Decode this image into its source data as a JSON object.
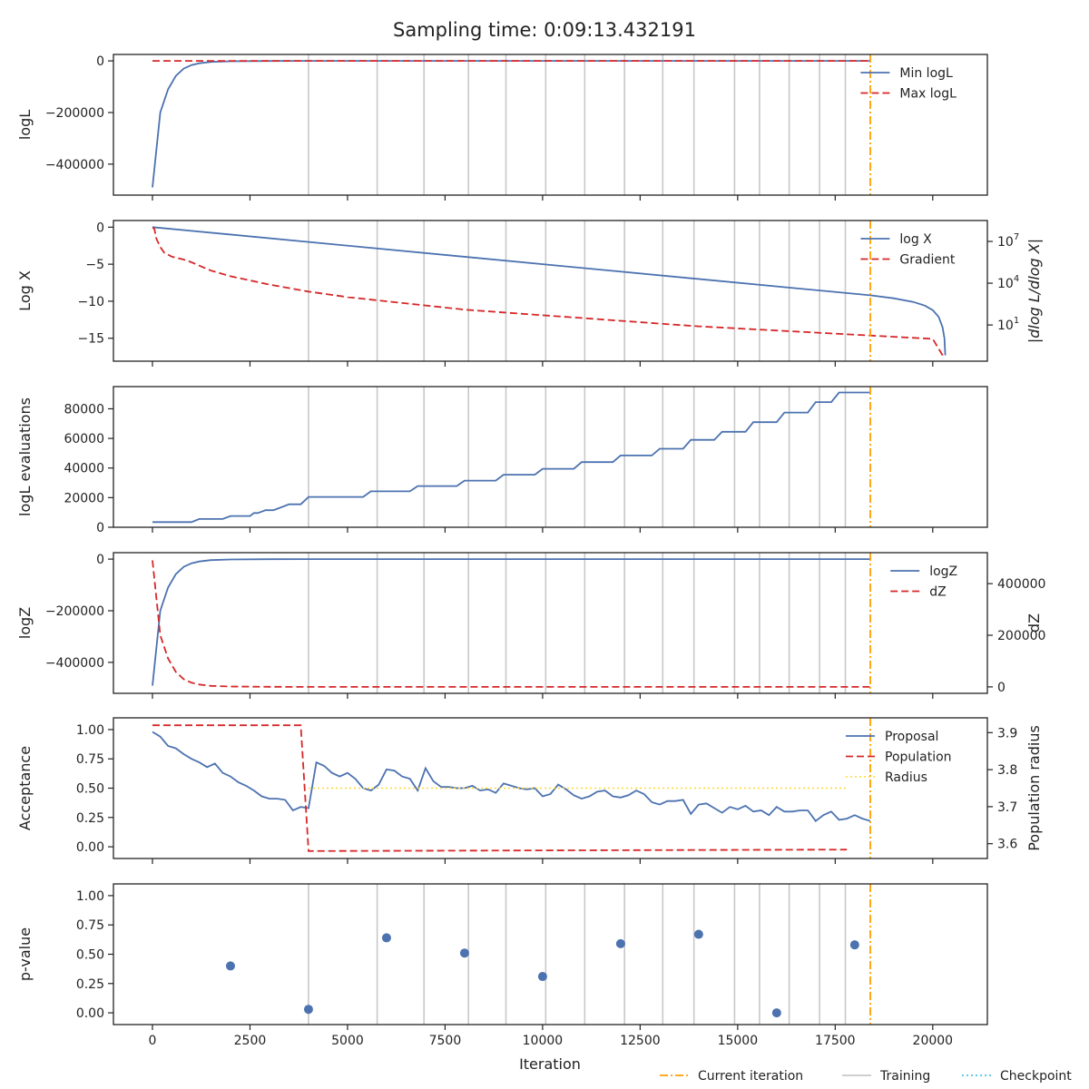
{
  "title": "Sampling time: 0:09:13.432191",
  "colors": {
    "blue": "#4c72b0",
    "red": "#d62728",
    "orange": "#ff9f00",
    "gold": "#ffd92f",
    "training": "#c8c8c8",
    "checkpoint": "#4cc3e8",
    "point": "#4c72b0"
  },
  "bottom_legend": [
    {
      "label": "Current iteration",
      "style": "dashdot",
      "color": "orange"
    },
    {
      "label": "Training",
      "style": "solid",
      "color": "training"
    },
    {
      "label": "Checkpoint",
      "style": "dotted",
      "color": "checkpoint"
    }
  ],
  "chart_data": {
    "type": "line",
    "shared_x": {
      "label": "Iteration",
      "range": [
        -1000,
        21400
      ],
      "ticks": [
        0,
        2500,
        5000,
        7500,
        10000,
        12500,
        15000,
        17500,
        20000
      ],
      "tick_labels": [
        "0",
        "2500",
        "5000",
        "7500",
        "10000",
        "12500",
        "15000",
        "17500",
        "20000"
      ]
    },
    "current_iteration": 18400,
    "training_iterations": [
      4000,
      5760,
      6960,
      8100,
      9060,
      10080,
      11080,
      12100,
      13080,
      13880,
      14920,
      15560,
      16320,
      17100,
      17760
    ],
    "panels": [
      {
        "id": "logl",
        "ylabel": "logL",
        "ylim": [
          -520000,
          25000
        ],
        "yticks": [
          0,
          -200000,
          -400000
        ],
        "ytick_labels": [
          "0",
          "−200000",
          "−400000"
        ],
        "legend": [
          "Min logL",
          "Max logL"
        ],
        "series": [
          {
            "name": "Min logL",
            "style": "solid",
            "color": "blue",
            "x": [
              0,
              200,
              400,
              600,
              800,
              1000,
              1200,
              1500,
              2000,
              3000,
              4000,
              8000,
              12000,
              18400
            ],
            "y": [
              -490000,
              -200000,
              -110000,
              -58000,
              -30000,
              -16000,
              -9000,
              -4000,
              -1200,
              -200,
              -60,
              -20,
              -10,
              -5
            ]
          },
          {
            "name": "Max logL",
            "style": "dashed",
            "color": "red",
            "x": [
              0,
              18400
            ],
            "y": [
              0,
              0
            ]
          }
        ]
      },
      {
        "id": "logx",
        "ylabel": "Log X",
        "ylim": [
          -18.1,
          0.9
        ],
        "yticks": [
          0,
          -5,
          -10,
          -15
        ],
        "ytick_labels": [
          "0",
          "−5",
          "−10",
          "−15"
        ],
        "y2label": "|dlog L/dlog X|",
        "y2_log": true,
        "y2lim_exp": [
          -1.6,
          8.5
        ],
        "y2ticks_exp": [
          1,
          4,
          7
        ],
        "y2tick_labels": [
          "10",
          "10",
          "10"
        ],
        "y2tick_exps": [
          "1",
          "4",
          "7"
        ],
        "legend": [
          "log X",
          "Gradient"
        ],
        "series": [
          {
            "name": "log X",
            "style": "solid",
            "color": "blue",
            "x": [
              0,
              18400,
              19000,
              19500,
              19800,
              20000,
              20150,
              20250,
              20300,
              20320
            ],
            "y": [
              0,
              -9.2,
              -9.6,
              -10.1,
              -10.6,
              -11.2,
              -12.1,
              -13.5,
              -15.0,
              -17.3
            ]
          },
          {
            "name": "Gradient",
            "axis": "right",
            "style": "dashed",
            "color": "red",
            "x": [
              0,
              50,
              100,
              200,
              300,
              500,
              800,
              1000,
              1500,
              2000,
              3000,
              4000,
              5000,
              6000,
              7000,
              8000,
              9000,
              10000,
              11000,
              12000,
              13000,
              14000,
              15000,
              16000,
              17000,
              18000,
              19000,
              20000,
              20300
            ],
            "y_exp": [
              8.0,
              7.9,
              7.2,
              6.6,
              6.2,
              5.9,
              5.7,
              5.5,
              4.9,
              4.5,
              3.9,
              3.4,
              3.0,
              2.7,
              2.4,
              2.1,
              1.9,
              1.7,
              1.5,
              1.3,
              1.1,
              0.9,
              0.75,
              0.6,
              0.45,
              0.3,
              0.15,
              0.0,
              -1.4
            ]
          }
        ]
      },
      {
        "id": "evals",
        "ylabel": "logL evaluations",
        "ylim": [
          0,
          95000
        ],
        "yticks": [
          0,
          20000,
          40000,
          60000,
          80000
        ],
        "ytick_labels": [
          "0",
          "20000",
          "40000",
          "60000",
          "80000"
        ],
        "legend": [],
        "series": [
          {
            "name": "logL evaluations",
            "style": "solid",
            "color": "blue",
            "x": [
              0,
              1000,
              1200,
              1800,
              2000,
              2500,
              2600,
              2700,
              2900,
              3100,
              3300,
              3500,
              3600,
              3800,
              4000,
              5400,
              5600,
              6600,
              6800,
              7800,
              8000,
              8800,
              9000,
              9800,
              10000,
              10800,
              11000,
              11800,
              12000,
              12800,
              13000,
              13600,
              13800,
              14400,
              14600,
              15200,
              15400,
              16000,
              16200,
              16800,
              17000,
              17400,
              17600,
              18400
            ],
            "y": [
              3500,
              3500,
              5600,
              5600,
              7600,
              7600,
              9600,
              9600,
              11500,
              11500,
              13500,
              15500,
              15500,
              15500,
              20500,
              20500,
              24300,
              24300,
              27800,
              27800,
              31500,
              31500,
              35500,
              35500,
              39500,
              39500,
              44000,
              44000,
              48500,
              48500,
              53000,
              53000,
              59000,
              59000,
              64500,
              64500,
              71000,
              71000,
              77500,
              77500,
              84500,
              84500,
              91000,
              91000
            ]
          }
        ]
      },
      {
        "id": "logz",
        "ylabel": "logZ",
        "ylim": [
          -520000,
          25000
        ],
        "yticks": [
          0,
          -200000,
          -400000
        ],
        "ytick_labels": [
          "0",
          "−200000",
          "−400000"
        ],
        "y2label": "dZ",
        "y2lim": [
          -25000,
          520000
        ],
        "y2ticks": [
          0,
          200000,
          400000
        ],
        "y2tick_labels": [
          "0",
          "200000",
          "400000"
        ],
        "legend": [
          "logZ",
          "dZ"
        ],
        "series": [
          {
            "name": "logZ",
            "style": "solid",
            "color": "blue",
            "x": [
              0,
              200,
              400,
              600,
              800,
              1000,
              1200,
              1500,
              2000,
              3000,
              4000,
              8000,
              18400
            ],
            "y": [
              -490000,
              -200000,
              -110000,
              -58000,
              -30000,
              -16000,
              -9000,
              -4000,
              -1200,
              -200,
              -60,
              -20,
              -10
            ]
          },
          {
            "name": "dZ",
            "axis": "right",
            "style": "dashed",
            "color": "red",
            "x": [
              0,
              200,
              400,
              600,
              800,
              1000,
              1200,
              1500,
              2000,
              3000,
              4000,
              8000,
              18400
            ],
            "y": [
              490000,
              200000,
              110000,
              58000,
              30000,
              16000,
              9000,
              4000,
              1200,
              200,
              60,
              20,
              10
            ]
          }
        ]
      },
      {
        "id": "accept",
        "ylabel": "Acceptance",
        "ylim": [
          -0.1,
          1.1
        ],
        "yticks": [
          0,
          0.25,
          0.5,
          0.75,
          1.0
        ],
        "ytick_labels": [
          "0.00",
          "0.25",
          "0.50",
          "0.75",
          "1.00"
        ],
        "y2label": "Population radius",
        "y2lim": [
          3.56,
          3.94
        ],
        "y2ticks": [
          3.6,
          3.7,
          3.8,
          3.9
        ],
        "y2tick_labels": [
          "3.6",
          "3.7",
          "3.8",
          "3.9"
        ],
        "legend": [
          "Proposal",
          "Population",
          "Radius"
        ],
        "series": [
          {
            "name": "Proposal",
            "style": "solid",
            "color": "blue",
            "x": [
              0,
              200,
              400,
              600,
              800,
              1000,
              1200,
              1400,
              1600,
              1800,
              2000,
              2200,
              2400,
              2600,
              2800,
              3000,
              3200,
              3400,
              3600,
              3800,
              4000,
              4200,
              4400,
              4600,
              4800,
              5000,
              5200,
              5400,
              5600,
              5800,
              6000,
              6200,
              6400,
              6600,
              6800,
              7000,
              7200,
              7400,
              7600,
              7800,
              8000,
              8200,
              8400,
              8600,
              8800,
              9000,
              9200,
              9400,
              9600,
              9800,
              10000,
              10200,
              10400,
              10600,
              10800,
              11000,
              11200,
              11400,
              11600,
              11800,
              12000,
              12200,
              12400,
              12600,
              12800,
              13000,
              13200,
              13400,
              13600,
              13800,
              14000,
              14200,
              14400,
              14600,
              14800,
              15000,
              15200,
              15400,
              15600,
              15800,
              16000,
              16200,
              16400,
              16600,
              16800,
              17000,
              17200,
              17400,
              17600,
              17800,
              18000,
              18200,
              18400
            ],
            "y": [
              0.98,
              0.94,
              0.86,
              0.84,
              0.79,
              0.75,
              0.72,
              0.68,
              0.71,
              0.63,
              0.6,
              0.55,
              0.52,
              0.48,
              0.43,
              0.41,
              0.41,
              0.4,
              0.31,
              0.34,
              0.33,
              0.72,
              0.69,
              0.63,
              0.6,
              0.63,
              0.58,
              0.5,
              0.48,
              0.53,
              0.66,
              0.65,
              0.6,
              0.58,
              0.48,
              0.67,
              0.56,
              0.51,
              0.51,
              0.5,
              0.5,
              0.52,
              0.48,
              0.49,
              0.46,
              0.54,
              0.52,
              0.5,
              0.49,
              0.5,
              0.43,
              0.45,
              0.53,
              0.49,
              0.44,
              0.41,
              0.43,
              0.47,
              0.48,
              0.43,
              0.42,
              0.44,
              0.48,
              0.45,
              0.38,
              0.36,
              0.39,
              0.39,
              0.4,
              0.28,
              0.36,
              0.37,
              0.33,
              0.29,
              0.34,
              0.32,
              0.35,
              0.3,
              0.31,
              0.27,
              0.34,
              0.3,
              0.3,
              0.31,
              0.31,
              0.22,
              0.27,
              0.3,
              0.23,
              0.24,
              0.27,
              0.24,
              0.22
            ]
          },
          {
            "name": "Population",
            "axis": "right",
            "style": "dashed",
            "color": "red",
            "x": [
              0,
              3800,
              4000,
              17800
            ],
            "y": [
              3.92,
              3.92,
              3.58,
              3.584
            ]
          },
          {
            "name": "Radius",
            "style": "dotted",
            "color": "gold",
            "x": [
              4000,
              17800
            ],
            "y": [
              0.5,
              0.5
            ]
          }
        ]
      },
      {
        "id": "pvalue",
        "type": "scatter",
        "ylabel": "p-value",
        "ylim": [
          -0.1,
          1.1
        ],
        "yticks": [
          0,
          0.25,
          0.5,
          0.75,
          1.0
        ],
        "ytick_labels": [
          "0.00",
          "0.25",
          "0.50",
          "0.75",
          "1.00"
        ],
        "legend": [],
        "series": [
          {
            "name": "p-value",
            "style": "points",
            "color": "point",
            "x": [
              2000,
              4000,
              6000,
              8000,
              10000,
              12000,
              14000,
              16000,
              18000
            ],
            "y": [
              0.4,
              0.03,
              0.64,
              0.51,
              0.31,
              0.59,
              0.67,
              0.0,
              0.58
            ]
          }
        ]
      }
    ]
  }
}
